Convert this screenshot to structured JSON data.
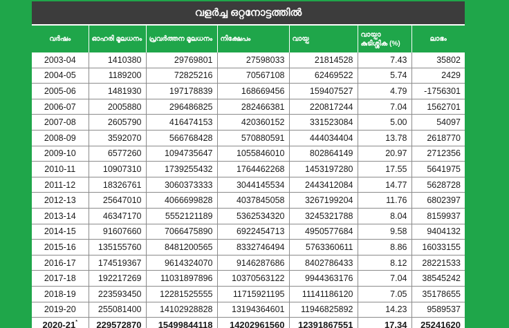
{
  "title": "വളർച്ച ഒറ്റനോട്ടത്തിൽ",
  "headers": {
    "year": "വർഷം",
    "share_capital": "ഓഹരി മൂലധനം",
    "working_capital": "പ്രവർത്തന മൂലധനം",
    "deposit": "നിക്ഷേപം",
    "loan": "വായ്പ",
    "loan_arrears": "വായ്പാ കുടിശ്ശിക (%)",
    "profit": "ലാഭം"
  },
  "rows": [
    [
      "2003-04",
      "1410380",
      "29769801",
      "27598033",
      "21814528",
      "7.43",
      "35802"
    ],
    [
      "2004-05",
      "1189200",
      "72825216",
      "70567108",
      "62469522",
      "5.74",
      "2429"
    ],
    [
      "2005-06",
      "1481930",
      "197178839",
      "168669456",
      "159407527",
      "4.79",
      "-1756301"
    ],
    [
      "2006-07",
      "2005880",
      "296486825",
      "282466381",
      "220817244",
      "7.04",
      "1562701"
    ],
    [
      "2007-08",
      "2605790",
      "416474153",
      "420360152",
      "331523084",
      "5.00",
      "54097"
    ],
    [
      "2008-09",
      "3592070",
      "566768428",
      "570880591",
      "444034404",
      "13.78",
      "2618770"
    ],
    [
      "2009-10",
      "6577260",
      "1094735647",
      "1055846010",
      "802864149",
      "20.97",
      "2712356"
    ],
    [
      "2010-11",
      "10907310",
      "1739255432",
      "1764462268",
      "1453197280",
      "17.55",
      "5641975"
    ],
    [
      "2011-12",
      "18326761",
      "3060373333",
      "3044145534",
      "2443412084",
      "14.77",
      "5628728"
    ],
    [
      "2012-13",
      "25647010",
      "4066699828",
      "4037845058",
      "3267199204",
      "11.76",
      "6802397"
    ],
    [
      "2013-14",
      "46347170",
      "5552121189",
      "5362534320",
      "3245321788",
      "8.04",
      "8159937"
    ],
    [
      "2014-15",
      "91607660",
      "7066475890",
      "6922454713",
      "4950577684",
      "9.58",
      "9404132"
    ],
    [
      "2015-16",
      "135155760",
      "8481200565",
      "8332746494",
      "5763360611",
      "8.86",
      "16033155"
    ],
    [
      "2016-17",
      "174519367",
      "9614324070",
      "9146287686",
      "8402786433",
      "8.12",
      "28221533"
    ],
    [
      "2017-18",
      "192217269",
      "11031897896",
      "10370563122",
      "9944363176",
      "7.04",
      "38545242"
    ],
    [
      "2018-19",
      "223593450",
      "12281525555",
      "11715921195",
      "11141186120",
      "7.05",
      "35178655"
    ],
    [
      "2019-20",
      "255081400",
      "14102928828",
      "13194364601",
      "11946825892",
      "14.23",
      "9589537"
    ]
  ],
  "last_row": {
    "year": "2020-21",
    "marker": "*",
    "values": [
      "229572870",
      "15499844118",
      "14202961560",
      "12391867551",
      "17.34",
      "25241620"
    ]
  }
}
